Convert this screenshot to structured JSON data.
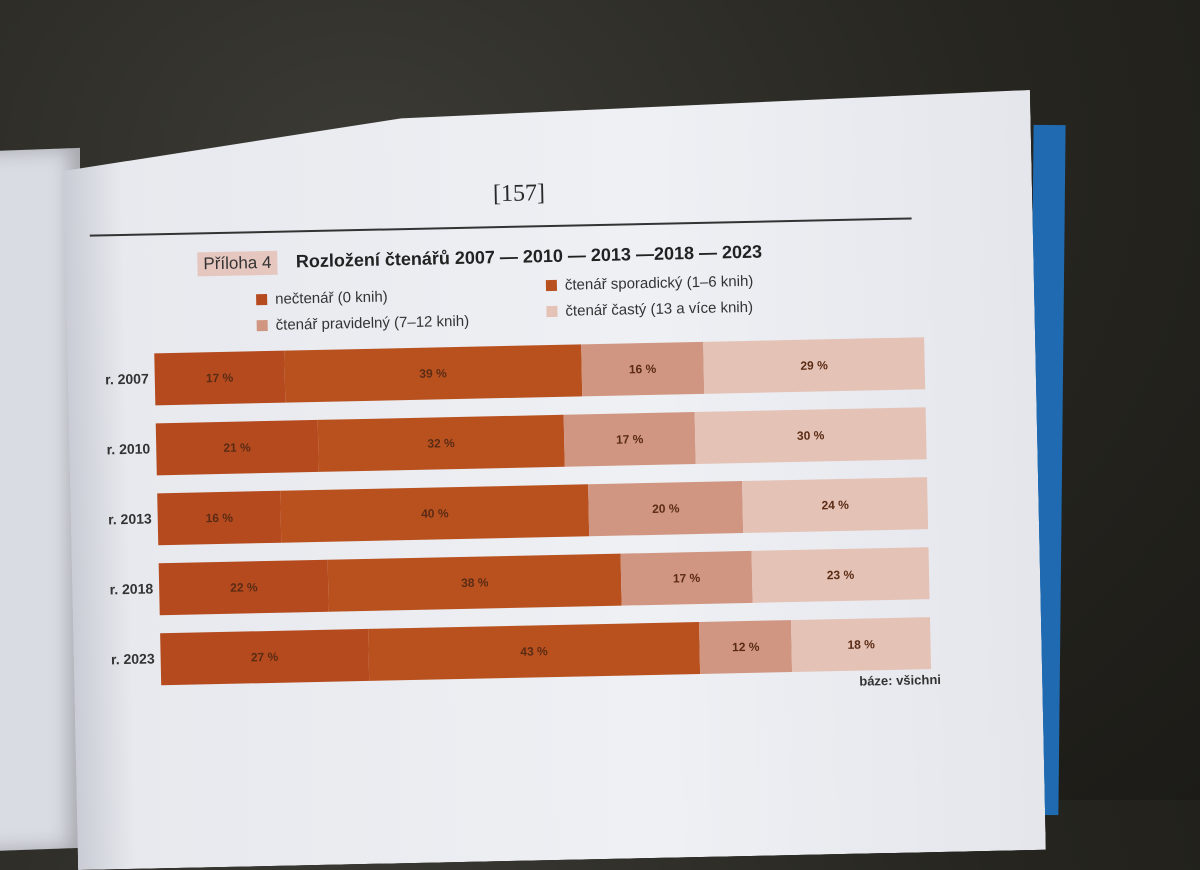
{
  "page": {
    "number": "[157]",
    "tag": "Příloha 4",
    "title": "Rozložení čtenářů 2007 — 2010 — 2013 —2018 — 2023",
    "base_note": "báze: všichni"
  },
  "colors": {
    "nectenar": "#b54a1e",
    "sporadicky": "#b9511f",
    "pravidelny": "#d19681",
    "casty": "#e4c2b6"
  },
  "legend": [
    {
      "label": "nečtenář (0 knih)",
      "color_key": "nectenar"
    },
    {
      "label": "čtenář sporadický (1–6 knih)",
      "color_key": "sporadicky"
    },
    {
      "label": "čtenář pravidelný (7–12 knih)",
      "color_key": "pravidelny"
    },
    {
      "label": "čtenář častý (13 a více knih)",
      "color_key": "casty"
    }
  ],
  "chart_data": {
    "type": "bar",
    "orientation": "horizontal",
    "stacked": true,
    "title": "Rozložení čtenářů 2007 — 2010 — 2013 —2018 — 2023",
    "categories": [
      "r. 2007",
      "r. 2010",
      "r. 2013",
      "r. 2018",
      "r. 2023"
    ],
    "series": [
      {
        "name": "nečtenář (0 knih)",
        "values": [
          17,
          21,
          16,
          22,
          27
        ],
        "labels": [
          "17 %",
          "21 %",
          "16 %",
          "22 %",
          "27 %"
        ]
      },
      {
        "name": "čtenář sporadický (1–6 knih)",
        "values": [
          39,
          32,
          40,
          38,
          43
        ],
        "labels": [
          "39 %",
          "32 %",
          "40 %",
          "38 %",
          "43 %"
        ]
      },
      {
        "name": "čtenář pravidelný (7–12 knih)",
        "values": [
          16,
          17,
          20,
          17,
          12
        ],
        "labels": [
          "16 %",
          "17 %",
          "20 %",
          "17 %",
          "12 %"
        ]
      },
      {
        "name": "čtenář častý (13 a více knih)",
        "values": [
          29,
          30,
          24,
          23,
          18
        ],
        "labels": [
          "29 %",
          "30 %",
          "24 %",
          "23 %",
          "18 %"
        ]
      }
    ],
    "legend_position": "top"
  }
}
